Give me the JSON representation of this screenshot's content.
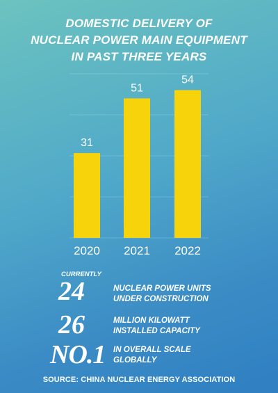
{
  "title": {
    "line1": "DOMESTIC DELIVERY OF",
    "line2": "NUCLEAR POWER MAIN EQUIPMENT",
    "line3": "IN PAST THREE YEARS"
  },
  "chart_data": {
    "type": "bar",
    "categories": [
      "2020",
      "2021",
      "2022"
    ],
    "values": [
      31,
      51,
      54
    ],
    "title": "DOMESTIC DELIVERY OF NUCLEAR POWER MAIN EQUIPMENT IN PAST THREE YEARS",
    "xlabel": "",
    "ylabel": "",
    "ylim": [
      0,
      60
    ],
    "grid": true,
    "legend": "none",
    "bar_color": "#f7d30c"
  },
  "stats": {
    "currently_label": "CURRENTLY",
    "items": [
      {
        "number": "24",
        "line1": "NUCLEAR POWER UNITS",
        "line2": "UNDER CONSTRUCTION"
      },
      {
        "number": "26",
        "line1": "MILLION KILOWATT",
        "line2": "INSTALLED CAPACITY"
      },
      {
        "number": "NO.1",
        "line1": "IN OVERALL SCALE",
        "line2": "GLOBALLY"
      }
    ]
  },
  "source": "SOURCE: CHINA NUCLEAR ENERGY ASSOCIATION"
}
